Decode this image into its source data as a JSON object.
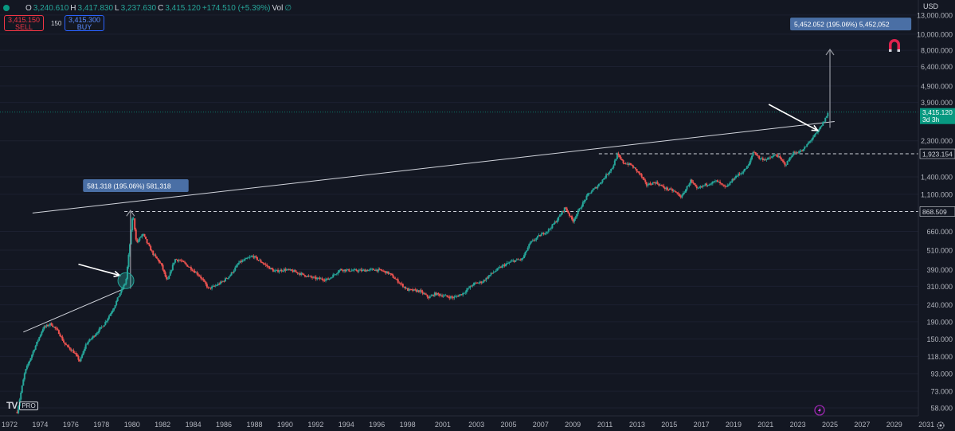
{
  "header": {
    "open_key": "O",
    "open": "3,240.610",
    "high_key": "H",
    "high": "3,417.830",
    "low_key": "L",
    "low": "3,237.630",
    "close_key": "C",
    "close": "3,415.120",
    "change": "+174.510 (+5.39%)",
    "vol_key": "Vol",
    "vol": "∅"
  },
  "trade": {
    "sell_price": "3,415.150",
    "sell_label": "SELL",
    "spread": "150",
    "buy_price": "3,415.300",
    "buy_label": "BUY"
  },
  "currency": "USD",
  "branding": {
    "logo_text": "TV",
    "pro_badge": "PRO"
  },
  "colors": {
    "background": "#131722",
    "up": "#26a69a",
    "down": "#ef5350",
    "accent_label": "#4a6fa5",
    "price_tag": "#089981"
  },
  "chart_data": {
    "type": "candlestick",
    "y_scale": "log",
    "ylim": [
      52,
      16000
    ],
    "xlim": [
      1972,
      2032
    ],
    "x_ticks": [
      "1972",
      "1974",
      "1976",
      "1978",
      "1980",
      "1982",
      "1984",
      "1986",
      "1988",
      "1990",
      "1992",
      "1994",
      "1996",
      "1998",
      "2001",
      "2003",
      "2005",
      "2007",
      "2009",
      "2011",
      "2013",
      "2015",
      "2017",
      "2019",
      "2021",
      "2023",
      "2025",
      "2027",
      "2029",
      "2031"
    ],
    "x_tick_years": [
      1972.0,
      1974.0,
      1976.0,
      1978.0,
      1980.0,
      1982.0,
      1984.0,
      1986.0,
      1988.0,
      1990.0,
      1992.0,
      1994.0,
      1996.0,
      1998.0,
      2000.3,
      2002.5,
      2004.6,
      2006.7,
      2008.8,
      2010.9,
      2013.0,
      2015.1,
      2017.2,
      2019.3,
      2021.4,
      2023.5,
      2025.6,
      2027.7,
      2029.8,
      2031.9
    ],
    "y_ticks": [
      {
        "label": "13,000.000",
        "value": 13000
      },
      {
        "label": "10,000.000",
        "value": 10000
      },
      {
        "label": "8,000.000",
        "value": 8000
      },
      {
        "label": "6,400.000",
        "value": 6400
      },
      {
        "label": "4,900.000",
        "value": 4900
      },
      {
        "label": "3,900.000",
        "value": 3900
      },
      {
        "label": "2,300.000",
        "value": 2300
      },
      {
        "label": "1,400.000",
        "value": 1400
      },
      {
        "label": "1,100.000",
        "value": 1100
      },
      {
        "label": "660.000",
        "value": 660
      },
      {
        "label": "510.000",
        "value": 510
      },
      {
        "label": "390.000",
        "value": 390
      },
      {
        "label": "310.000",
        "value": 310
      },
      {
        "label": "240.000",
        "value": 240
      },
      {
        "label": "190.000",
        "value": 190
      },
      {
        "label": "150.000",
        "value": 150
      },
      {
        "label": "118.000",
        "value": 118
      },
      {
        "label": "93.000",
        "value": 93
      },
      {
        "label": "73.000",
        "value": 73
      },
      {
        "label": "58.000",
        "value": 58
      }
    ],
    "price_path": [
      [
        1972.5,
        55
      ],
      [
        1973.0,
        95
      ],
      [
        1973.6,
        130
      ],
      [
        1974.2,
        175
      ],
      [
        1974.7,
        185
      ],
      [
        1975.2,
        165
      ],
      [
        1975.6,
        140
      ],
      [
        1976.2,
        125
      ],
      [
        1976.6,
        110
      ],
      [
        1977.0,
        140
      ],
      [
        1977.6,
        160
      ],
      [
        1978.2,
        185
      ],
      [
        1978.8,
        230
      ],
      [
        1979.2,
        280
      ],
      [
        1979.6,
        330
      ],
      [
        1979.9,
        600
      ],
      [
        1980.05,
        850
      ],
      [
        1980.3,
        560
      ],
      [
        1980.7,
        640
      ],
      [
        1981.0,
        560
      ],
      [
        1981.4,
        480
      ],
      [
        1981.9,
        420
      ],
      [
        1982.3,
        330
      ],
      [
        1982.8,
        450
      ],
      [
        1983.2,
        440
      ],
      [
        1983.8,
        400
      ],
      [
        1984.4,
        360
      ],
      [
        1985.0,
        300
      ],
      [
        1985.4,
        310
      ],
      [
        1985.9,
        330
      ],
      [
        1986.4,
        360
      ],
      [
        1987.0,
        430
      ],
      [
        1987.9,
        470
      ],
      [
        1988.5,
        430
      ],
      [
        1989.3,
        380
      ],
      [
        1990.0,
        390
      ],
      [
        1990.6,
        380
      ],
      [
        1991.3,
        360
      ],
      [
        1992.0,
        345
      ],
      [
        1992.8,
        340
      ],
      [
        1993.6,
        390
      ],
      [
        1994.3,
        385
      ],
      [
        1995.0,
        385
      ],
      [
        1995.8,
        390
      ],
      [
        1996.3,
        385
      ],
      [
        1996.8,
        370
      ],
      [
        1997.4,
        330
      ],
      [
        1998.0,
        295
      ],
      [
        1998.8,
        290
      ],
      [
        1999.4,
        265
      ],
      [
        1999.8,
        280
      ],
      [
        2000.5,
        270
      ],
      [
        2001.0,
        265
      ],
      [
        2001.6,
        280
      ],
      [
        2002.3,
        320
      ],
      [
        2002.9,
        330
      ],
      [
        2003.5,
        370
      ],
      [
        2004.2,
        410
      ],
      [
        2004.9,
        440
      ],
      [
        2005.5,
        450
      ],
      [
        2006.0,
        560
      ],
      [
        2006.6,
        620
      ],
      [
        2007.2,
        670
      ],
      [
        2007.8,
        780
      ],
      [
        2008.3,
        920
      ],
      [
        2008.8,
        760
      ],
      [
        2009.3,
        920
      ],
      [
        2009.8,
        1100
      ],
      [
        2010.4,
        1230
      ],
      [
        2010.9,
        1400
      ],
      [
        2011.4,
        1600
      ],
      [
        2011.7,
        1900
      ],
      [
        2012.1,
        1700
      ],
      [
        2012.6,
        1650
      ],
      [
        2013.2,
        1450
      ],
      [
        2013.6,
        1250
      ],
      [
        2014.2,
        1300
      ],
      [
        2014.8,
        1200
      ],
      [
        2015.4,
        1150
      ],
      [
        2015.9,
        1060
      ],
      [
        2016.5,
        1330
      ],
      [
        2016.9,
        1180
      ],
      [
        2017.5,
        1260
      ],
      [
        2018.2,
        1320
      ],
      [
        2018.8,
        1200
      ],
      [
        2019.4,
        1400
      ],
      [
        2019.9,
        1500
      ],
      [
        2020.3,
        1650
      ],
      [
        2020.6,
        2000
      ],
      [
        2021.0,
        1800
      ],
      [
        2021.5,
        1780
      ],
      [
        2022.1,
        1900
      ],
      [
        2022.7,
        1650
      ],
      [
        2023.2,
        1950
      ],
      [
        2023.8,
        2000
      ],
      [
        2024.3,
        2300
      ],
      [
        2024.8,
        2600
      ],
      [
        2025.2,
        3000
      ],
      [
        2025.5,
        3415
      ]
    ],
    "last_price": {
      "label": "3,415.120",
      "value": 3415.12,
      "countdown": "3d 3h"
    },
    "levels": [
      {
        "value": 1923.154,
        "label": "1,923.154",
        "x_start": 2010.5
      },
      {
        "value": 868.509,
        "label": "868.509",
        "x_start": 1979.5
      }
    ],
    "trendlines": [
      {
        "from": [
          1973.5,
          850
        ],
        "to": [
          2025.9,
          3000
        ]
      },
      {
        "from": [
          1972.9,
          165
        ],
        "to": [
          1979.5,
          300
        ]
      }
    ],
    "measures": [
      {
        "x": 1979.9,
        "from": 300,
        "to": 880,
        "label": "581.318 (195.06%) 581,318",
        "label_x": 1976.8,
        "label_value": 1240
      },
      {
        "x": 2025.6,
        "from": 2750,
        "to": 8100,
        "label": "5,452.052 (195.06%) 5,452,052",
        "label_x": 2023.0,
        "label_value": 11500
      }
    ],
    "arrows": [
      {
        "from": [
          1976.5,
          420
        ],
        "to": [
          1979.2,
          360
        ]
      },
      {
        "from": [
          2021.6,
          3800
        ],
        "to": [
          2024.8,
          2650
        ]
      }
    ],
    "circle": {
      "x": 1979.6,
      "value": 335
    }
  }
}
